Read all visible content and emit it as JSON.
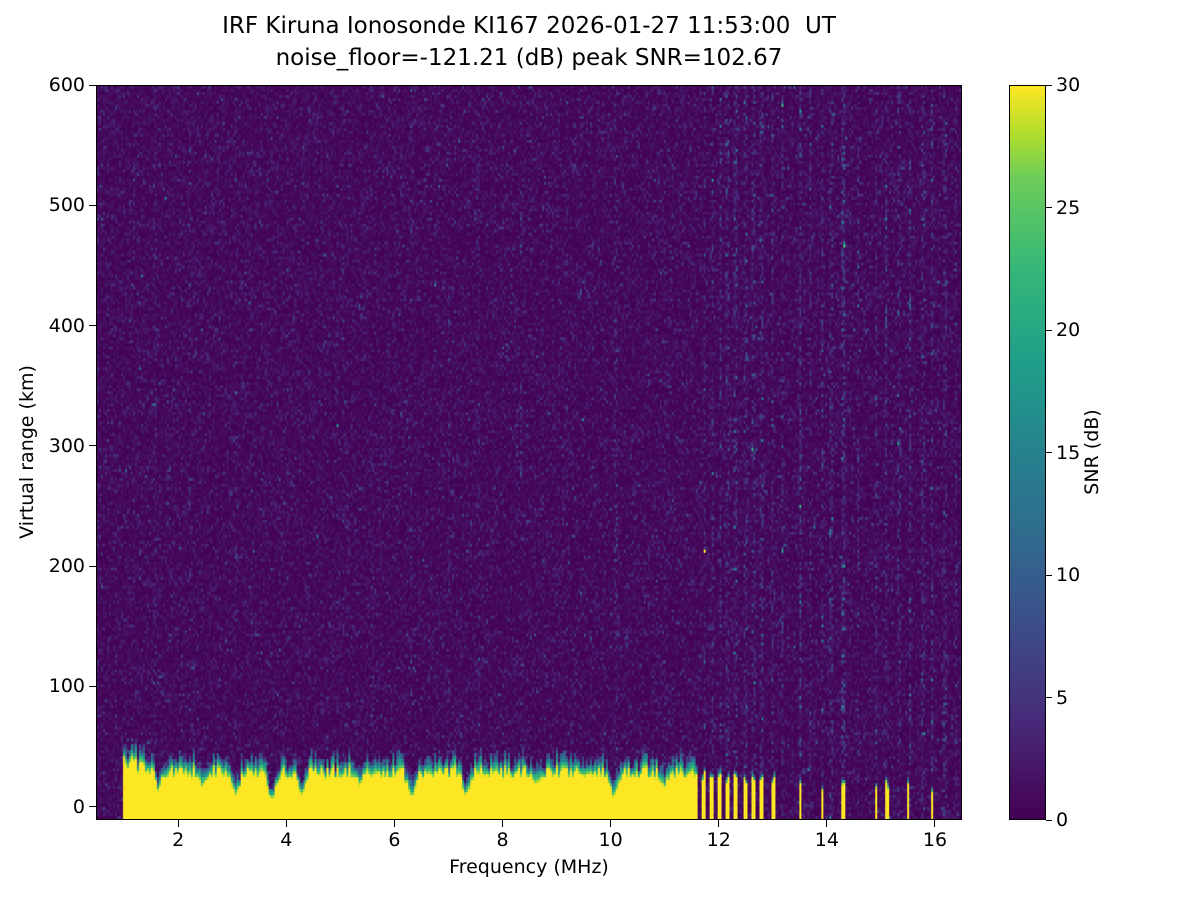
{
  "chart_data": {
    "type": "heatmap",
    "title": "IRF Kiruna Ionosonde KI167 2026-01-27 11:53:00  UT",
    "subtitle": "noise_floor=-121.21 (dB) peak SNR=102.67",
    "station": "KI167",
    "timestamp_ut": "2026-01-27 11:53:00",
    "noise_floor_db": -121.21,
    "peak_snr_db": 102.67,
    "xlabel": "Frequency (MHz)",
    "ylabel": "Virtual range (km)",
    "colorbar_label": "SNR (dB)",
    "colormap": "viridis",
    "xlim": [
      0.48,
      16.5
    ],
    "ylim": [
      -11,
      600
    ],
    "clim": [
      0,
      30
    ],
    "x_ticks": [
      2,
      4,
      6,
      8,
      10,
      12,
      14,
      16
    ],
    "y_ticks": [
      0,
      100,
      200,
      300,
      400,
      500,
      600
    ],
    "colorbar_ticks": [
      0,
      5,
      10,
      15,
      20,
      25,
      30
    ],
    "background_noise": {
      "mean_snr_db": 1.1,
      "speckle_probability": 0.003,
      "speckle_extra_db": 4
    },
    "ground_echo": {
      "freq_start": 0.95,
      "freq_end": 11.62,
      "top_km_base": 22,
      "top_km_jitter": 10,
      "fringe_km": 15,
      "tall_left_below": 1.7,
      "tall_left_factor": 0.45,
      "notches": [
        {
          "f": 1.62,
          "w": 0.05,
          "depth": 0.5
        },
        {
          "f": 2.45,
          "w": 0.05,
          "depth": 0.45
        },
        {
          "f": 3.06,
          "w": 0.06,
          "depth": 0.65
        },
        {
          "f": 3.72,
          "w": 0.07,
          "depth": 0.8
        },
        {
          "f": 4.28,
          "w": 0.06,
          "depth": 0.7
        },
        {
          "f": 5.35,
          "w": 0.05,
          "depth": 0.4
        },
        {
          "f": 6.32,
          "w": 0.07,
          "depth": 0.75
        },
        {
          "f": 7.32,
          "w": 0.06,
          "depth": 0.65
        },
        {
          "f": 8.62,
          "w": 0.05,
          "depth": 0.4
        },
        {
          "f": 10.06,
          "w": 0.07,
          "depth": 0.7
        },
        {
          "f": 11.0,
          "w": 0.05,
          "depth": 0.4
        }
      ]
    },
    "isolated_echo_columns": [
      {
        "f": 11.74,
        "w": 0.08,
        "top": 24
      },
      {
        "f": 11.89,
        "w": 0.08,
        "top": 22
      },
      {
        "f": 12.03,
        "w": 0.08,
        "top": 23
      },
      {
        "f": 12.17,
        "w": 0.07,
        "top": 21
      },
      {
        "f": 12.32,
        "w": 0.08,
        "top": 23
      },
      {
        "f": 12.51,
        "w": 0.07,
        "top": 21
      },
      {
        "f": 12.65,
        "w": 0.08,
        "top": 22
      },
      {
        "f": 12.8,
        "w": 0.07,
        "top": 20
      },
      {
        "f": 13.01,
        "w": 0.08,
        "top": 22
      },
      {
        "f": 13.52,
        "w": 0.06,
        "top": 18
      },
      {
        "f": 13.92,
        "w": 0.05,
        "top": 15
      },
      {
        "f": 14.32,
        "w": 0.06,
        "top": 17
      },
      {
        "f": 14.92,
        "w": 0.05,
        "top": 15
      },
      {
        "f": 15.12,
        "w": 0.06,
        "top": 17
      },
      {
        "f": 15.52,
        "w": 0.06,
        "top": 19
      },
      {
        "f": 15.96,
        "w": 0.05,
        "top": 13
      }
    ],
    "rfi_stripes": [
      {
        "f": 1.55,
        "w": 0.05,
        "boost": 0.4
      },
      {
        "f": 2.2,
        "w": 0.05,
        "boost": 0.4
      },
      {
        "f": 3.05,
        "w": 0.05,
        "boost": 0.3
      },
      {
        "f": 5.05,
        "w": 0.05,
        "boost": 0.4
      },
      {
        "f": 6.3,
        "w": 0.05,
        "boost": 0.5
      },
      {
        "f": 7.0,
        "w": 0.05,
        "boost": 0.4
      },
      {
        "f": 7.55,
        "w": 0.05,
        "boost": 0.3
      },
      {
        "f": 8.35,
        "w": 0.05,
        "boost": 0.4
      },
      {
        "f": 9.2,
        "w": 0.05,
        "boost": 0.3
      },
      {
        "f": 10.1,
        "w": 0.05,
        "boost": 0.5
      },
      {
        "f": 11.0,
        "w": 0.05,
        "boost": 0.3
      },
      {
        "f": 11.74,
        "w": 0.05,
        "boost": 1.2
      },
      {
        "f": 11.89,
        "w": 0.05,
        "boost": 1.1
      },
      {
        "f": 12.03,
        "w": 0.05,
        "boost": 1.2
      },
      {
        "f": 12.17,
        "w": 0.05,
        "boost": 1.0
      },
      {
        "f": 12.32,
        "w": 0.05,
        "boost": 1.2
      },
      {
        "f": 12.51,
        "w": 0.05,
        "boost": 1.0
      },
      {
        "f": 12.65,
        "w": 0.05,
        "boost": 1.2
      },
      {
        "f": 12.8,
        "w": 0.05,
        "boost": 1.0
      },
      {
        "f": 13.01,
        "w": 0.05,
        "boost": 1.2
      },
      {
        "f": 13.2,
        "w": 0.05,
        "boost": 1.4
      },
      {
        "f": 13.52,
        "w": 0.05,
        "boost": 2.4
      },
      {
        "f": 13.7,
        "w": 0.05,
        "boost": 0.9
      },
      {
        "f": 13.92,
        "w": 0.05,
        "boost": 1.3
      },
      {
        "f": 14.1,
        "w": 0.05,
        "boost": 1.0
      },
      {
        "f": 14.32,
        "w": 0.05,
        "boost": 1.8
      },
      {
        "f": 14.6,
        "w": 0.05,
        "boost": 1.0
      },
      {
        "f": 14.92,
        "w": 0.05,
        "boost": 1.2
      },
      {
        "f": 15.12,
        "w": 0.05,
        "boost": 1.4
      },
      {
        "f": 15.35,
        "w": 0.05,
        "boost": 1.1
      },
      {
        "f": 15.55,
        "w": 0.05,
        "boost": 1.7
      },
      {
        "f": 15.8,
        "w": 0.05,
        "boost": 1.0
      },
      {
        "f": 15.97,
        "w": 0.05,
        "boost": 1.5
      },
      {
        "f": 16.2,
        "w": 0.05,
        "boost": 1.1
      },
      {
        "f": 16.4,
        "w": 0.05,
        "boost": 0.8
      }
    ]
  }
}
